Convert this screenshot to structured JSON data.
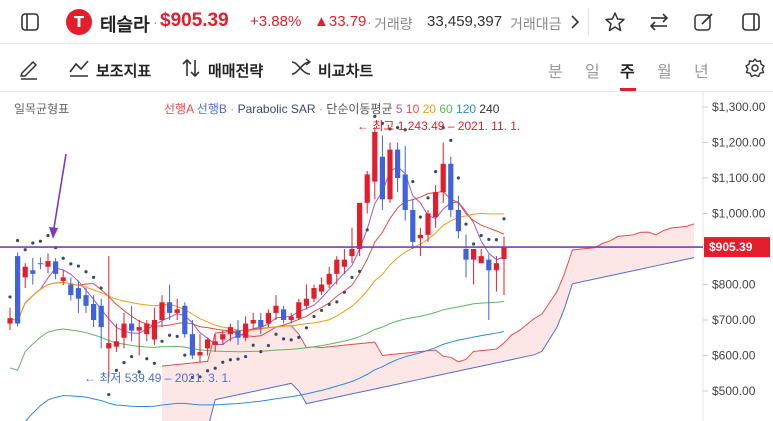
{
  "header": {
    "ticker_name": "테슬라",
    "price": "$905.39",
    "change_percent": "+3.88%",
    "change_amount": "▲33.79",
    "volume_label": "거래량",
    "volume_value": "33,459,397",
    "amount_label": "거래대금",
    "icons": [
      "sidebar-icon",
      "next-icon",
      "star-icon",
      "swap-icon",
      "edit-icon",
      "panel-icon"
    ]
  },
  "toolbar": {
    "draw_icon": "pencil-icon",
    "indicators_label": "보조지표",
    "strategy_label": "매매전략",
    "compare_label": "비교차트",
    "periods": [
      "분",
      "일",
      "주",
      "월",
      "년"
    ],
    "active_period": "주",
    "settings_icon": "gear-icon"
  },
  "chart": {
    "indicator_title": "일목균형표",
    "legend": {
      "span_a": "선행A",
      "span_b": "선행B",
      "sar": "Parabolic SAR",
      "ma_label": "단순이동평균",
      "ma_periods": [
        "5",
        "10",
        "20",
        "60",
        "120",
        "240"
      ]
    },
    "high_annotation": "← 최고 1,243.49 – 2021. 11. 1.",
    "low_annotation": "← 최저 539.49 – 2021. 3. 1.",
    "current_price_tag": "$905.39",
    "colors": {
      "up": "#e31d2b",
      "down": "#3f63d9",
      "span_a": "#e34c4c",
      "span_b": "#4d6fd6",
      "cloud": "#fde6e6",
      "price_line": "#7b3bbf"
    }
  },
  "chart_data": {
    "type": "candlestick",
    "ylim": [
      470,
      1330
    ],
    "yticks": [
      "$1,300.00",
      "$1,200.00",
      "$1,100.00",
      "$1,000.00",
      "$900.00",
      "$800.00",
      "$700.00",
      "$600.00",
      "$500.00"
    ],
    "ytick_values": [
      1300,
      1200,
      1100,
      1000,
      900,
      800,
      700,
      600,
      500
    ],
    "candles": [
      [
        690,
        735,
        705,
        672
      ],
      [
        880,
        890,
        690,
        682
      ],
      [
        820,
        860,
        850,
        790
      ],
      [
        840,
        875,
        830,
        800
      ],
      [
        860,
        876,
        858,
        843
      ],
      [
        850,
        888,
        866,
        832
      ],
      [
        865,
        874,
        830,
        815
      ],
      [
        810,
        840,
        820,
        798
      ],
      [
        800,
        820,
        770,
        755
      ],
      [
        790,
        810,
        760,
        720
      ],
      [
        770,
        790,
        740,
        720
      ],
      [
        745,
        770,
        700,
        680
      ],
      [
        740,
        760,
        680,
        620
      ],
      [
        620,
        880,
        635,
        539
      ],
      [
        625,
        690,
        640,
        610
      ],
      [
        650,
        720,
        690,
        620
      ],
      [
        690,
        740,
        670,
        640
      ],
      [
        670,
        700,
        680,
        600
      ],
      [
        660,
        700,
        690,
        640
      ],
      [
        645,
        735,
        700,
        630
      ],
      [
        700,
        770,
        750,
        680
      ],
      [
        750,
        800,
        720,
        700
      ],
      [
        720,
        760,
        730,
        700
      ],
      [
        740,
        750,
        660,
        650
      ],
      [
        660,
        700,
        600,
        590
      ],
      [
        600,
        660,
        610,
        580
      ],
      [
        620,
        650,
        645,
        600
      ],
      [
        630,
        660,
        640,
        610
      ],
      [
        645,
        670,
        660,
        630
      ],
      [
        660,
        690,
        680,
        640
      ],
      [
        670,
        700,
        650,
        630
      ],
      [
        650,
        710,
        690,
        640
      ],
      [
        690,
        720,
        700,
        675
      ],
      [
        700,
        720,
        680,
        660
      ],
      [
        690,
        730,
        720,
        680
      ],
      [
        720,
        770,
        740,
        700
      ],
      [
        730,
        740,
        700,
        690
      ],
      [
        700,
        720,
        710,
        690
      ],
      [
        705,
        760,
        750,
        700
      ],
      [
        740,
        800,
        760,
        730
      ],
      [
        760,
        800,
        790,
        750
      ],
      [
        780,
        820,
        800,
        770
      ],
      [
        800,
        850,
        830,
        790
      ],
      [
        830,
        880,
        870,
        800
      ],
      [
        850,
        900,
        870,
        830
      ],
      [
        880,
        960,
        900,
        860
      ],
      [
        900,
        1020,
        1030,
        880
      ],
      [
        1030,
        1120,
        1110,
        1000
      ],
      [
        1090,
        1243.49,
        1230,
        1040
      ],
      [
        1160,
        1220,
        1040,
        1010
      ],
      [
        1040,
        1200,
        1180,
        1030
      ],
      [
        1180,
        1200,
        1100,
        1060
      ],
      [
        1110,
        1190,
        1010,
        980
      ],
      [
        1010,
        1040,
        920,
        900
      ],
      [
        930,
        960,
        940,
        880
      ],
      [
        940,
        1010,
        1000,
        920
      ],
      [
        990,
        1080,
        1060,
        960
      ],
      [
        1060,
        1200,
        1140,
        1030
      ],
      [
        1140,
        1160,
        1010,
        990
      ],
      [
        1010,
        1050,
        950,
        930
      ],
      [
        900,
        940,
        870,
        820
      ],
      [
        870,
        880,
        900,
        800
      ],
      [
        860,
        900,
        880,
        860
      ],
      [
        870,
        885,
        840,
        700
      ],
      [
        840,
        880,
        860,
        780
      ],
      [
        871.6,
        935,
        905.39,
        770
      ]
    ],
    "current_price": 905.39
  }
}
